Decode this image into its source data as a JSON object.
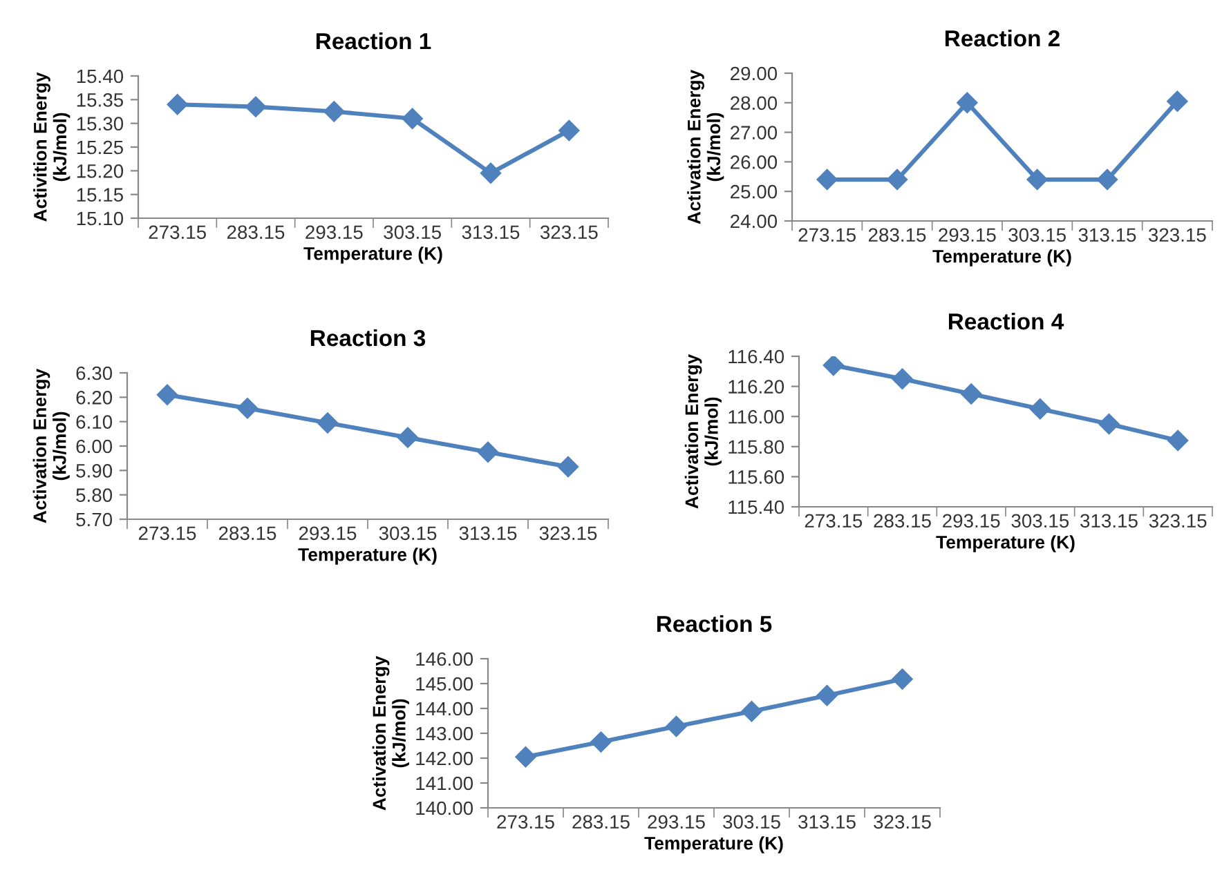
{
  "chart_data": [
    {
      "type": "line",
      "title": "Reaction 1",
      "xlabel": "Temperature (K)",
      "ylabel": "Activition Energy\n(kJ/mol)",
      "categories": [
        "273.15",
        "283.15",
        "293.15",
        "303.15",
        "313.15",
        "323.15"
      ],
      "series": [
        {
          "color": "#4f81bd",
          "values": [
            15.34,
            15.335,
            15.325,
            15.31,
            15.195,
            15.285
          ]
        }
      ],
      "ylim": [
        15.1,
        15.4
      ],
      "yticks": [
        {
          "value": 15.1,
          "label": "15.10"
        },
        {
          "value": 15.15,
          "label": "15.15"
        },
        {
          "value": 15.2,
          "label": "15.20"
        },
        {
          "value": 15.25,
          "label": "15.25"
        },
        {
          "value": 15.3,
          "label": "15.30"
        },
        {
          "value": 15.35,
          "label": "15.35"
        },
        {
          "value": 15.4,
          "label": "15.40"
        }
      ],
      "marker": "diamond",
      "line_style": "solid",
      "grid": false
    },
    {
      "type": "line",
      "title": "Reaction 2",
      "xlabel": "Temperature (K)",
      "ylabel": "Activation Energy\n(kJ/mol)",
      "categories": [
        "273.15",
        "283.15",
        "293.15",
        "303.15",
        "313.15",
        "323.15"
      ],
      "series": [
        {
          "color": "#4f81bd",
          "values": [
            25.4,
            25.4,
            28.0,
            25.4,
            25.4,
            28.05
          ]
        }
      ],
      "ylim": [
        24,
        29
      ],
      "yticks": [
        {
          "value": 24,
          "label": "24.00"
        },
        {
          "value": 25,
          "label": "25.00"
        },
        {
          "value": 26,
          "label": "26.00"
        },
        {
          "value": 27,
          "label": "27.00"
        },
        {
          "value": 28,
          "label": "28.00"
        },
        {
          "value": 29,
          "label": "29.00"
        }
      ],
      "marker": "diamond",
      "line_style": "solid",
      "grid": false
    },
    {
      "type": "line",
      "title": "Reaction 3",
      "xlabel": "Temperature (K)",
      "ylabel": "Activation Energy\n(kJ/mol)",
      "categories": [
        "273.15",
        "283.15",
        "293.15",
        "303.15",
        "313.15",
        "323.15"
      ],
      "series": [
        {
          "color": "#4f81bd",
          "values": [
            6.21,
            6.155,
            6.095,
            6.035,
            5.975,
            5.915
          ]
        }
      ],
      "ylim": [
        5.7,
        6.3
      ],
      "yticks": [
        {
          "value": 5.7,
          "label": "5.70"
        },
        {
          "value": 5.8,
          "label": "5.80"
        },
        {
          "value": 5.9,
          "label": "5.90"
        },
        {
          "value": 6.0,
          "label": "6.00"
        },
        {
          "value": 6.1,
          "label": "6.10"
        },
        {
          "value": 6.2,
          "label": "6.20"
        },
        {
          "value": 6.3,
          "label": "6.30"
        }
      ],
      "marker": "diamond",
      "line_style": "solid",
      "grid": false
    },
    {
      "type": "line",
      "title": "Reaction 4",
      "xlabel": "Temperature (K)",
      "ylabel": "Activation Energy\n(kJ/mol)",
      "categories": [
        "273.15",
        "283.15",
        "293.15",
        "303.15",
        "313.15",
        "323.15"
      ],
      "series": [
        {
          "color": "#4f81bd",
          "values": [
            116.34,
            116.25,
            116.15,
            116.05,
            115.95,
            115.84
          ]
        }
      ],
      "ylim": [
        115.4,
        116.4
      ],
      "yticks": [
        {
          "value": 115.4,
          "label": "115.40"
        },
        {
          "value": 115.6,
          "label": "115.60"
        },
        {
          "value": 115.8,
          "label": "115.80"
        },
        {
          "value": 116.0,
          "label": "116.00"
        },
        {
          "value": 116.2,
          "label": "116.20"
        },
        {
          "value": 116.4,
          "label": "116.40"
        }
      ],
      "marker": "diamond",
      "line_style": "solid",
      "grid": false
    },
    {
      "type": "line",
      "title": "Reaction 5",
      "xlabel": "Temperature (K)",
      "ylabel": "Activation Energy\n(kJ/mol)",
      "categories": [
        "273.15",
        "283.15",
        "293.15",
        "303.15",
        "313.15",
        "323.15"
      ],
      "series": [
        {
          "color": "#4f81bd",
          "values": [
            142.05,
            142.65,
            143.28,
            143.88,
            144.52,
            145.18
          ]
        }
      ],
      "ylim": [
        140,
        146
      ],
      "yticks": [
        {
          "value": 140,
          "label": "140.00"
        },
        {
          "value": 141,
          "label": "141.00"
        },
        {
          "value": 142,
          "label": "142.00"
        },
        {
          "value": 143,
          "label": "143.00"
        },
        {
          "value": 144,
          "label": "144.00"
        },
        {
          "value": 145,
          "label": "145.00"
        },
        {
          "value": 146,
          "label": "146.00"
        }
      ],
      "marker": "diamond",
      "line_style": "solid",
      "grid": false
    }
  ]
}
